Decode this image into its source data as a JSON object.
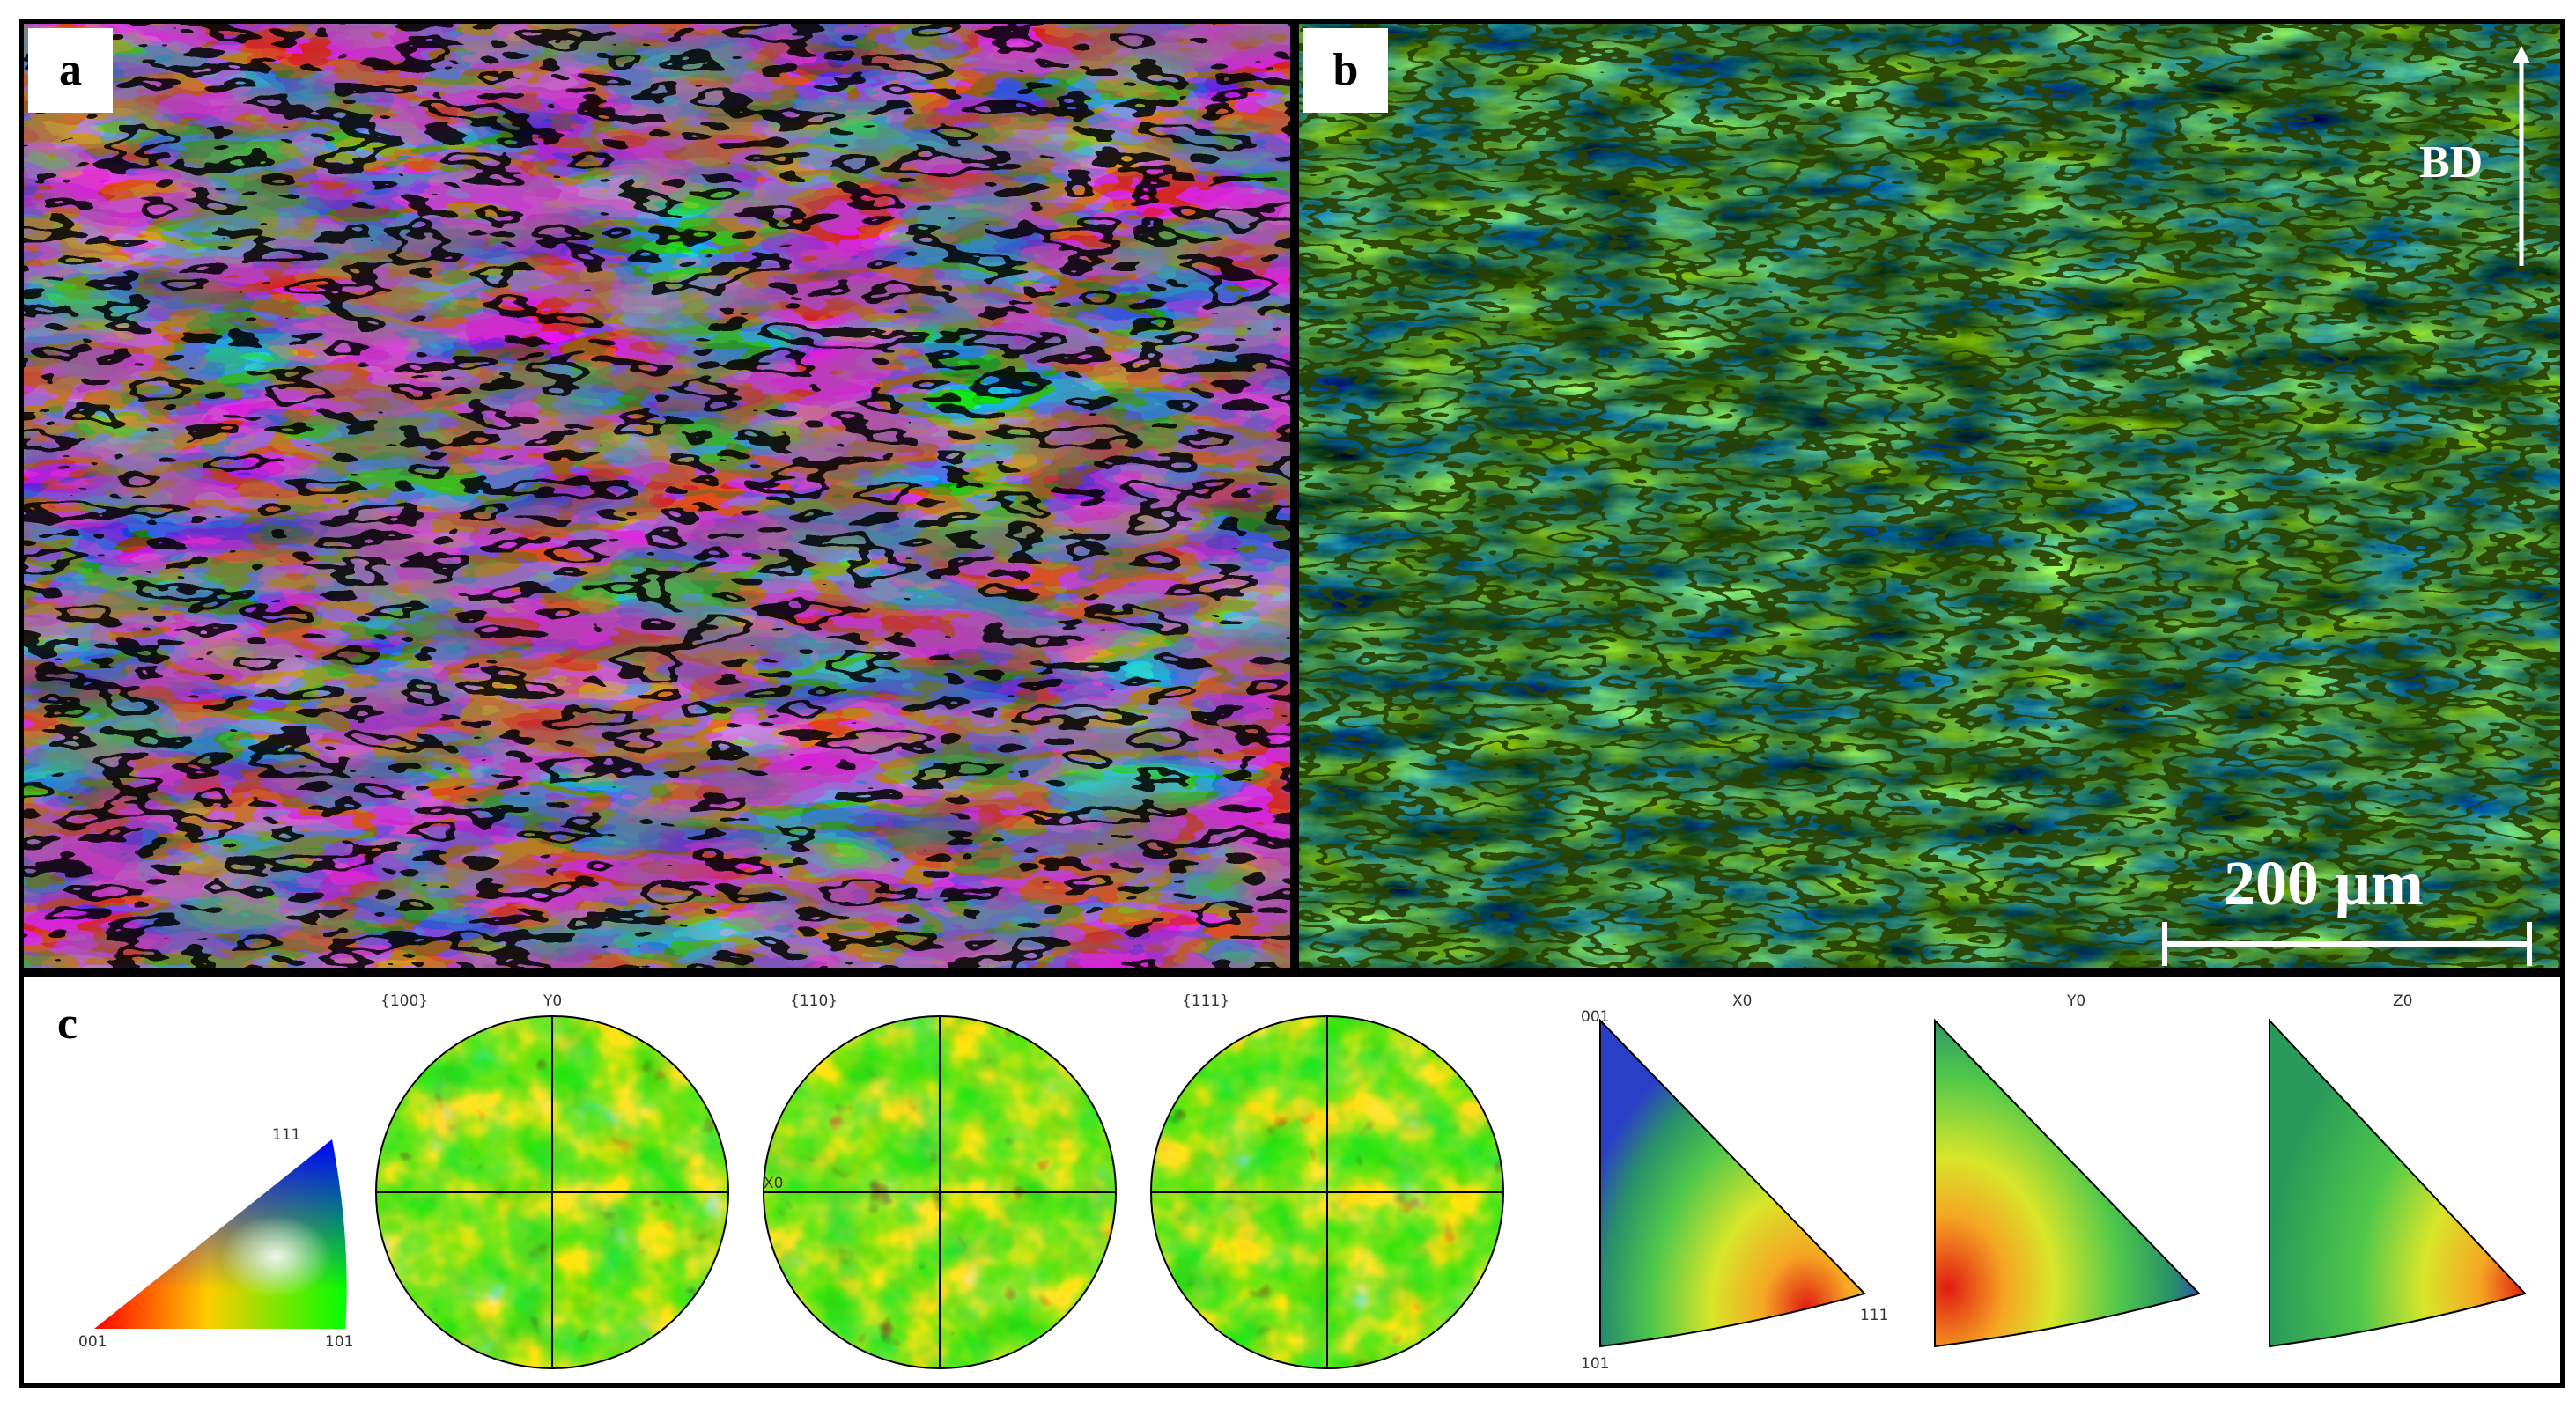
{
  "panels": {
    "a": {
      "label": "a"
    },
    "b": {
      "label": "b",
      "direction_label": "BD",
      "scale_bar": "200 μm"
    },
    "c": {
      "label": "c",
      "ipf_key": {
        "corner_001": "001",
        "corner_101": "101",
        "corner_111": "111"
      },
      "pole_figures": [
        {
          "title": "{100}",
          "top_axis": "Y0",
          "side_axis": "X0"
        },
        {
          "title": "{110}"
        },
        {
          "title": "{111}"
        }
      ],
      "inverse_pole_figures": [
        {
          "title": "X0",
          "corner_001": "001",
          "corner_101": "101",
          "corner_111": "111"
        },
        {
          "title": "Y0"
        },
        {
          "title": "Z0"
        }
      ]
    }
  },
  "colors": {
    "ipf_001": "#ff0000",
    "ipf_101": "#00ff00",
    "ipf_111": "#0000ff",
    "kam_low": "#1e5fb0",
    "kam_mid": "#3f9a4a",
    "kam_high": "#c8d22a",
    "intensity_low": "#2a3fc8",
    "intensity_mid": "#4fd84a",
    "intensity_high": "#e11d12"
  }
}
